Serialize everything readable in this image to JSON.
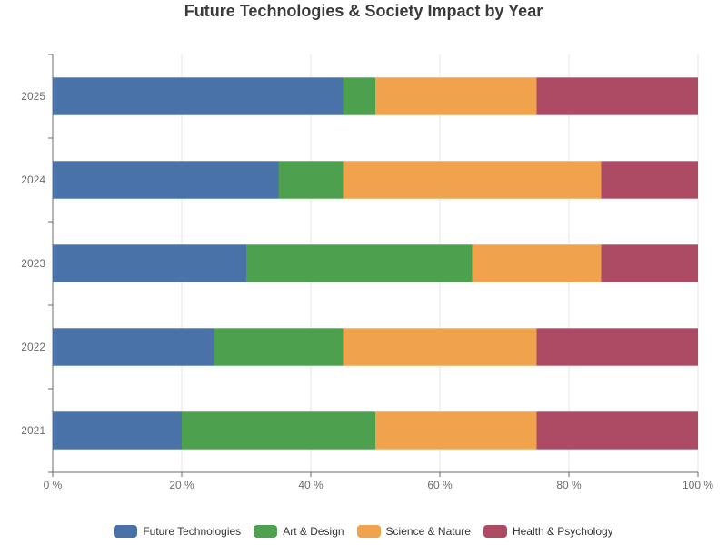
{
  "chart_data": {
    "type": "bar",
    "orientation": "horizontal",
    "stacked": "percent",
    "title": "Future Technologies & Society Impact by Year",
    "xlabel": "",
    "ylabel": "",
    "xlim": [
      0,
      100
    ],
    "x_ticks": [
      "0 %",
      "20 %",
      "40 %",
      "60 %",
      "80 %",
      "100 %"
    ],
    "categories": [
      "2021",
      "2022",
      "2023",
      "2024",
      "2025"
    ],
    "series": [
      {
        "name": "Future Technologies",
        "color": "#4872a8",
        "values": [
          20,
          25,
          30,
          35,
          45
        ]
      },
      {
        "name": "Art & Design",
        "color": "#4ca04e",
        "values": [
          30,
          20,
          35,
          10,
          5
        ]
      },
      {
        "name": "Science & Nature",
        "color": "#f0a24d",
        "values": [
          25,
          30,
          20,
          40,
          25
        ]
      },
      {
        "name": "Health & Psychology",
        "color": "#ad4b65",
        "values": [
          25,
          25,
          15,
          15,
          25
        ]
      }
    ],
    "grid": true,
    "legend_position": "bottom-center"
  }
}
